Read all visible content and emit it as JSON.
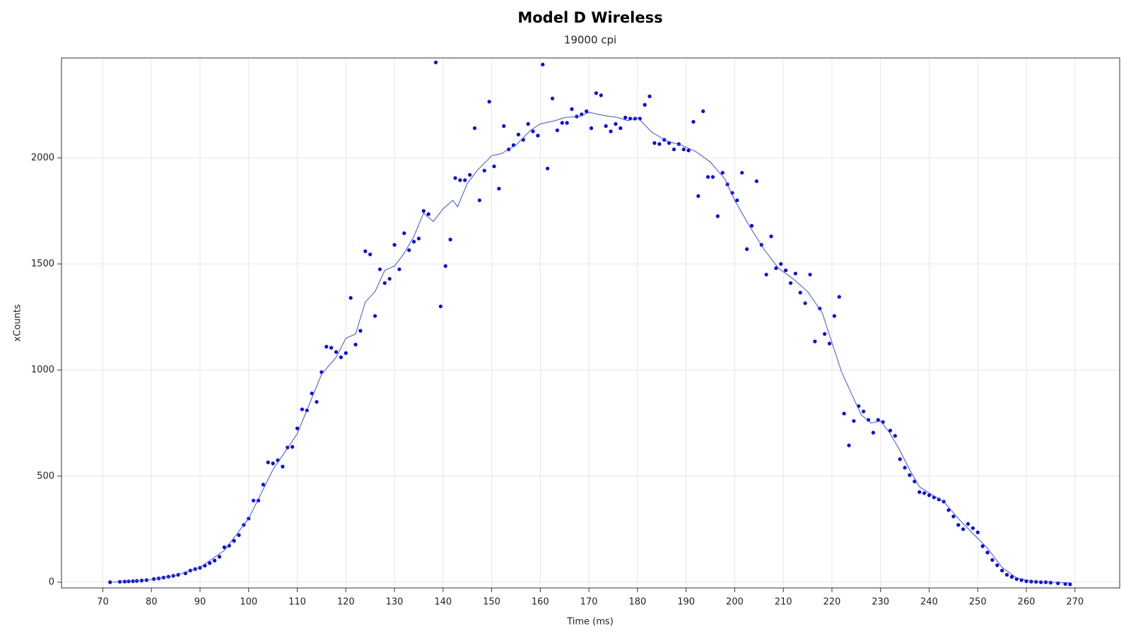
{
  "chart_data": {
    "type": "scatter",
    "title": "Model D Wireless",
    "subtitle": "19000 cpi",
    "x_label": "Time (ms)",
    "y_label": "xCounts",
    "xlim": [
      61.5,
      279.2
    ],
    "ylim": [
      -27,
      2471
    ],
    "xticks": [
      70,
      80,
      90,
      100,
      110,
      120,
      130,
      140,
      150,
      160,
      170,
      180,
      190,
      200,
      210,
      220,
      230,
      240,
      250,
      260,
      270
    ],
    "yticks": [
      0,
      500,
      1000,
      1500,
      2000
    ],
    "grid": true,
    "series": [
      {
        "type": "scatter",
        "color": "#0000ff",
        "x": [
          71.5,
          73.5,
          74.5,
          75.3,
          76.2,
          77,
          78,
          79,
          80.5,
          81.5,
          82.5,
          83.5,
          84.5,
          85.5,
          87,
          88,
          89,
          90,
          91,
          92,
          93,
          94,
          95,
          96,
          97,
          98,
          99,
          100,
          101,
          102,
          103,
          104,
          105,
          106,
          107,
          108,
          109,
          110,
          111,
          112,
          113,
          114,
          115,
          116,
          117,
          118,
          119,
          120,
          121,
          122,
          123,
          124,
          125,
          126,
          127,
          128,
          129,
          130,
          131,
          132,
          133,
          134,
          135,
          136,
          137,
          138.5,
          139.5,
          140.5,
          141.5,
          142.5,
          143.5,
          144.5,
          145.5,
          146.5,
          147.5,
          148.5,
          149.5,
          150.5,
          151.5,
          152.5,
          153.5,
          154.5,
          155.5,
          156.5,
          157.5,
          158.5,
          159.5,
          160.5,
          161.5,
          162.5,
          163.5,
          164.5,
          165.5,
          166.5,
          167.5,
          168.5,
          169.5,
          170.5,
          171.5,
          172.5,
          173.5,
          174.5,
          175.5,
          176.5,
          177.5,
          178.5,
          179.5,
          180.5,
          181.5,
          182.5,
          183.5,
          184.5,
          185.5,
          186.5,
          187.5,
          188.5,
          189.5,
          190.5,
          191.5,
          192.5,
          193.5,
          194.5,
          195.5,
          196.5,
          197.5,
          198.5,
          199.5,
          200.5,
          201.5,
          202.5,
          203.5,
          204.5,
          205.5,
          206.5,
          207.5,
          208.5,
          209.5,
          210.5,
          211.5,
          212.5,
          213.5,
          214.5,
          215.5,
          216.5,
          217.5,
          218.5,
          219.5,
          220.5,
          221.5,
          222.5,
          223.5,
          224.5,
          225.5,
          226.5,
          227.5,
          228.5,
          229.5,
          230.5,
          232,
          233,
          234,
          235,
          236,
          237,
          238,
          239,
          240,
          241,
          242,
          243,
          244,
          245,
          246,
          247,
          248,
          249,
          250,
          251,
          252,
          253,
          254,
          255,
          256,
          257,
          258,
          259,
          260,
          261,
          262,
          263,
          264,
          265,
          266.5,
          268,
          269
        ],
        "values": [
          0,
          2,
          3,
          4,
          5,
          6,
          8,
          10,
          15,
          18,
          22,
          26,
          30,
          35,
          42,
          55,
          62,
          68,
          78,
          90,
          102,
          120,
          165,
          172,
          195,
          222,
          270,
          300,
          385,
          385,
          460,
          565,
          560,
          575,
          545,
          635,
          638,
          725,
          815,
          810,
          890,
          850,
          990,
          1110,
          1105,
          1085,
          1060,
          1080,
          1340,
          1120,
          1185,
          1560,
          1545,
          1255,
          1475,
          1410,
          1430,
          1590,
          1475,
          1645,
          1565,
          1605,
          1620,
          1750,
          1735,
          2450,
          1300,
          1490,
          1615,
          1905,
          1895,
          1895,
          1920,
          2140,
          1800,
          1940,
          2265,
          1960,
          1855,
          2150,
          2040,
          2060,
          2110,
          2085,
          2160,
          2125,
          2105,
          2440,
          1950,
          2280,
          2130,
          2165,
          2165,
          2230,
          2195,
          2205,
          2220,
          2140,
          2305,
          2295,
          2150,
          2125,
          2160,
          2140,
          2190,
          2185,
          2185,
          2185,
          2250,
          2290,
          2070,
          2065,
          2085,
          2070,
          2040,
          2065,
          2040,
          2035,
          2170,
          1820,
          2220,
          1910,
          1910,
          1725,
          1930,
          1875,
          1835,
          1800,
          1930,
          1570,
          1680,
          1890,
          1590,
          1450,
          1630,
          1480,
          1500,
          1470,
          1410,
          1455,
          1365,
          1315,
          1450,
          1135,
          1290,
          1170,
          1125,
          1255,
          1345,
          795,
          645,
          760,
          830,
          805,
          765,
          705,
          765,
          755,
          715,
          690,
          580,
          540,
          505,
          475,
          425,
          420,
          410,
          400,
          390,
          380,
          340,
          310,
          270,
          250,
          275,
          255,
          235,
          170,
          140,
          105,
          80,
          55,
          35,
          25,
          15,
          10,
          5,
          3,
          2,
          0,
          0,
          -2,
          -5,
          -8,
          -10
        ]
      },
      {
        "type": "line",
        "color": "#3b4fe8",
        "x": [
          72,
          80,
          85,
          90,
          95,
          100,
          105,
          110,
          115,
          118,
          120,
          122,
          124,
          126,
          128,
          130,
          132,
          134,
          136,
          138,
          140,
          142,
          143,
          145,
          147,
          150,
          152,
          155,
          158,
          160,
          163,
          165,
          168,
          170,
          173,
          176,
          178,
          180,
          183,
          186,
          189,
          192,
          195,
          198,
          200,
          203,
          206,
          209,
          212,
          215,
          218,
          220,
          222,
          224,
          226,
          228,
          230,
          232,
          234,
          236,
          238,
          240,
          243,
          246,
          249,
          252,
          255,
          258,
          261,
          265,
          269
        ],
        "values": [
          0,
          12,
          32,
          70,
          150,
          300,
          530,
          700,
          980,
          1060,
          1150,
          1170,
          1320,
          1370,
          1470,
          1490,
          1550,
          1630,
          1740,
          1700,
          1760,
          1800,
          1770,
          1880,
          1940,
          2010,
          2020,
          2060,
          2130,
          2160,
          2175,
          2190,
          2195,
          2215,
          2200,
          2190,
          2175,
          2190,
          2120,
          2080,
          2060,
          2030,
          1980,
          1900,
          1800,
          1680,
          1570,
          1480,
          1430,
          1370,
          1270,
          1130,
          990,
          890,
          790,
          750,
          760,
          700,
          620,
          530,
          450,
          420,
          380,
          300,
          230,
          160,
          70,
          20,
          5,
          0,
          -3
        ]
      }
    ]
  }
}
